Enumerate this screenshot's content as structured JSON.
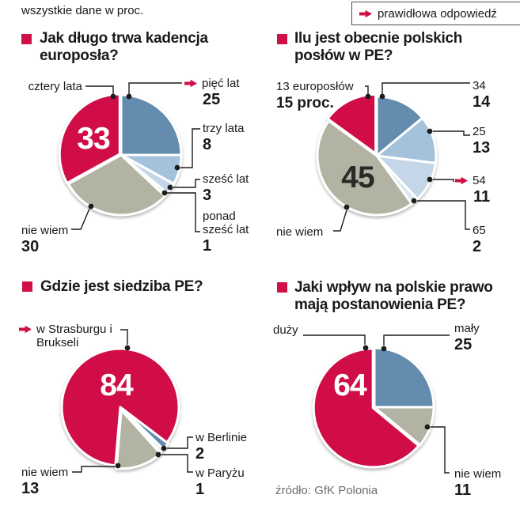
{
  "page": {
    "note": "wszystkie dane w proc.",
    "legend_label": "prawidłowa odpowiedź",
    "source": "źródło: GfK Polonia",
    "colors": {
      "accent_red": "#d00f46",
      "steel_blue": "#648cae",
      "light_blue": "#a4c2db",
      "pale_blue": "#c4d6e7",
      "palest_blue": "#dfe9f2",
      "khaki_gray": "#b3b3a4",
      "ink": "#1a1a18"
    }
  },
  "chart_data": [
    {
      "type": "pie",
      "title": "Jak długo trwa kadencja europosła?",
      "title_lines": [
        "Jak długo trwa kadencja",
        "europosła?"
      ],
      "unit": "percent",
      "start_angle": 0,
      "slices": [
        {
          "label": "pięć lat",
          "value": 25,
          "color": "#648cae",
          "correct": true
        },
        {
          "label": "trzy lata",
          "value": 8,
          "color": "#a4c2db"
        },
        {
          "label": "sześć lat",
          "value": 3,
          "color": "#c4d6e7"
        },
        {
          "label": "ponad sześć lat",
          "value": 1,
          "color": "#dfe9f2"
        },
        {
          "label": "nie wiem",
          "value": 30,
          "color": "#b3b3a4"
        },
        {
          "label": "cztery lata",
          "value": 33,
          "color": "#d00f46",
          "value_inside": true,
          "explode": 2
        }
      ]
    },
    {
      "type": "pie",
      "title": "Ilu jest obecnie polskich posłów w PE?",
      "title_lines": [
        "Ilu jest obecnie polskich",
        "posłów w PE?"
      ],
      "unit": "percent",
      "start_angle": 0,
      "slices": [
        {
          "label": "34",
          "value": 14,
          "color": "#648cae"
        },
        {
          "label": "25",
          "value": 13,
          "color": "#a4c2db"
        },
        {
          "label": "54",
          "value": 11,
          "color": "#c4d6e7",
          "correct": true
        },
        {
          "label": "65",
          "value": 2,
          "color": "#dce7f1"
        },
        {
          "label": "nie wiem",
          "value": 45,
          "color": "#b3b3a4",
          "value_inside": true
        },
        {
          "label": "13 europosłów",
          "value": 15,
          "value_label": "15 proc.",
          "color": "#d00f46",
          "explode": 3
        }
      ]
    },
    {
      "type": "pie",
      "title": "Gdzie jest siedziba PE?",
      "title_lines": [
        "Gdzie jest siedziba PE?"
      ],
      "unit": "percent",
      "start_angle": 127.2,
      "slices": [
        {
          "label": "w Berlinie",
          "value": 2,
          "color": "#648cae",
          "explode": 2
        },
        {
          "label": "w Paryżu",
          "value": 1,
          "color": "#dfe9f2",
          "explode": 2
        },
        {
          "label": "nie wiem",
          "value": 13,
          "color": "#b3b3a4",
          "explode": 4
        },
        {
          "label": "w Strasburgu i Brukseli",
          "value": 84,
          "color": "#d00f46",
          "value_inside": true,
          "correct": true
        }
      ]
    },
    {
      "type": "pie",
      "title": "Jaki wpływ na polskie prawo mają postanowienia PE?",
      "title_lines": [
        "Jaki wpływ na polskie prawo",
        "mają postanowienia PE?"
      ],
      "unit": "percent",
      "start_angle": 0,
      "slices": [
        {
          "label": "mały",
          "value": 25,
          "color": "#648cae"
        },
        {
          "label": "nie wiem",
          "value": 11,
          "color": "#b3b3a4"
        },
        {
          "label": "duży",
          "value": 64,
          "color": "#d00f46",
          "value_inside": true,
          "explode": 2
        }
      ]
    }
  ]
}
